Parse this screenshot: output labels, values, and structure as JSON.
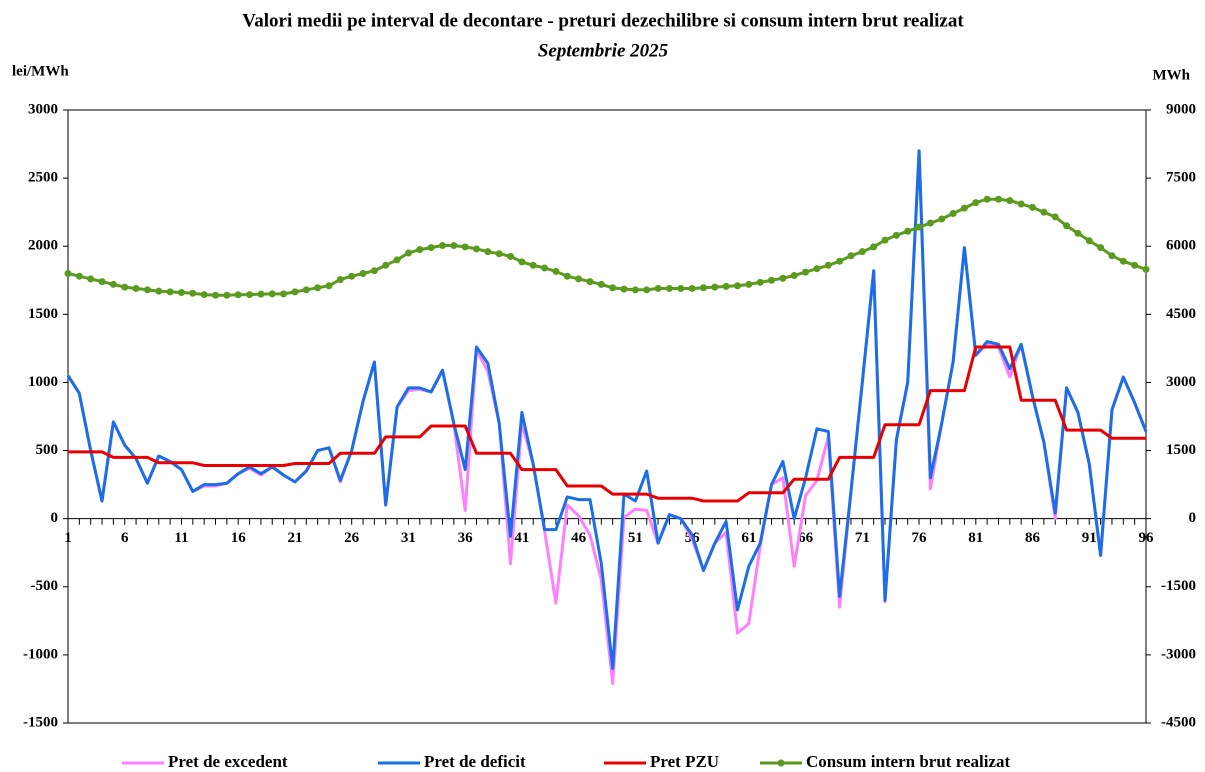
{
  "chart_data": {
    "type": "line",
    "title": "Valori medii pe interval de decontare - preturi dezechilibre si consum intern brut realizat",
    "subtitle": "Septembrie 2025",
    "y_label": "lei/MWh",
    "y2_label": "MWh",
    "x": [
      1,
      2,
      3,
      4,
      5,
      6,
      7,
      8,
      9,
      10,
      11,
      12,
      13,
      14,
      15,
      16,
      17,
      18,
      19,
      20,
      21,
      22,
      23,
      24,
      25,
      26,
      27,
      28,
      29,
      30,
      31,
      32,
      33,
      34,
      35,
      36,
      37,
      38,
      39,
      40,
      41,
      42,
      43,
      44,
      45,
      46,
      47,
      48,
      49,
      50,
      51,
      52,
      53,
      54,
      55,
      56,
      57,
      58,
      59,
      60,
      61,
      62,
      63,
      64,
      65,
      66,
      67,
      68,
      69,
      70,
      71,
      72,
      73,
      74,
      75,
      76,
      77,
      78,
      79,
      80,
      81,
      82,
      83,
      84,
      85,
      86,
      87,
      88,
      89,
      90,
      91,
      92,
      93,
      94,
      95,
      96
    ],
    "xlim": [
      1,
      96
    ],
    "xticks": [
      1,
      6,
      11,
      16,
      21,
      26,
      31,
      36,
      41,
      46,
      51,
      56,
      61,
      66,
      71,
      76,
      81,
      86,
      91,
      96
    ],
    "ylim": [
      -1500,
      3000
    ],
    "yticks": [
      -1500,
      -1000,
      -500,
      0,
      500,
      1000,
      1500,
      2000,
      2500,
      3000
    ],
    "y2lim": [
      -4500,
      9000
    ],
    "y2ticks": [
      -4500,
      -3000,
      -1500,
      0,
      1500,
      3000,
      4500,
      6000,
      7500,
      9000
    ],
    "legend": "bottom",
    "series": [
      {
        "name": "Pret de excedent",
        "color": "#ff80ff",
        "values": [
          1050,
          920,
          500,
          130,
          710,
          540,
          440,
          260,
          460,
          420,
          360,
          200,
          240,
          240,
          260,
          330,
          370,
          320,
          380,
          320,
          270,
          350,
          500,
          520,
          270,
          500,
          860,
          1150,
          100,
          820,
          940,
          950,
          930,
          1090,
          700,
          60,
          1240,
          1080,
          700,
          -330,
          700,
          400,
          -90,
          -620,
          100,
          20,
          -120,
          -450,
          -1210,
          10,
          70,
          60,
          -180,
          30,
          0,
          -150,
          -380,
          -180,
          -100,
          -840,
          -770,
          -200,
          250,
          300,
          -350,
          170,
          280,
          600,
          -650,
          200,
          1000,
          1820,
          -610,
          580,
          1000,
          2700,
          220,
          700,
          1150,
          1990,
          1200,
          1280,
          1260,
          1040,
          1280,
          900,
          560,
          0,
          960,
          780,
          400,
          -270,
          800,
          1040,
          850,
          640
        ]
      },
      {
        "name": "Pret de deficit",
        "color": "#1a6fe8",
        "values": [
          1050,
          920,
          500,
          130,
          710,
          540,
          440,
          260,
          460,
          420,
          360,
          200,
          250,
          250,
          260,
          330,
          380,
          330,
          380,
          320,
          270,
          350,
          500,
          520,
          280,
          500,
          860,
          1150,
          100,
          820,
          960,
          960,
          930,
          1090,
          700,
          360,
          1260,
          1140,
          700,
          -130,
          780,
          400,
          -80,
          -80,
          160,
          140,
          140,
          -330,
          -1100,
          180,
          130,
          350,
          -180,
          30,
          0,
          -120,
          -380,
          -180,
          -20,
          -670,
          -350,
          -180,
          250,
          420,
          0,
          300,
          660,
          640,
          -570,
          200,
          1000,
          1820,
          -600,
          580,
          1000,
          2700,
          300,
          700,
          1150,
          1990,
          1200,
          1300,
          1280,
          1100,
          1280,
          900,
          560,
          40,
          960,
          780,
          400,
          -270,
          800,
          1040,
          850,
          640
        ]
      },
      {
        "name": "Pret PZU",
        "color": "#e80000",
        "values": [
          490,
          490,
          490,
          490,
          450,
          450,
          450,
          450,
          410,
          410,
          410,
          410,
          390,
          390,
          390,
          390,
          390,
          390,
          390,
          390,
          405,
          405,
          405,
          405,
          480,
          480,
          480,
          480,
          600,
          600,
          600,
          600,
          680,
          680,
          680,
          680,
          480,
          480,
          480,
          480,
          360,
          360,
          360,
          360,
          240,
          240,
          240,
          240,
          180,
          180,
          180,
          180,
          150,
          150,
          150,
          150,
          130,
          130,
          130,
          130,
          190,
          190,
          190,
          190,
          290,
          290,
          290,
          290,
          450,
          450,
          450,
          450,
          690,
          690,
          690,
          690,
          940,
          940,
          940,
          940,
          1260,
          1260,
          1260,
          1260,
          870,
          870,
          870,
          870,
          650,
          650,
          650,
          650,
          590,
          590,
          590,
          590
        ]
      },
      {
        "name": "Consum intern brut realizat",
        "color": "#5a9a1e",
        "axis": "y2",
        "marker": "circle",
        "values": [
          5400,
          5340,
          5280,
          5220,
          5160,
          5100,
          5070,
          5040,
          5010,
          4995,
          4980,
          4965,
          4935,
          4920,
          4920,
          4930,
          4935,
          4945,
          4950,
          4950,
          4995,
          5040,
          5085,
          5130,
          5265,
          5340,
          5400,
          5460,
          5580,
          5700,
          5850,
          5925,
          5970,
          6015,
          6015,
          5985,
          5940,
          5880,
          5835,
          5775,
          5655,
          5580,
          5520,
          5445,
          5340,
          5280,
          5220,
          5160,
          5085,
          5055,
          5040,
          5040,
          5070,
          5070,
          5070,
          5070,
          5085,
          5100,
          5115,
          5130,
          5160,
          5205,
          5250,
          5295,
          5355,
          5430,
          5505,
          5580,
          5670,
          5790,
          5880,
          5985,
          6135,
          6240,
          6330,
          6420,
          6510,
          6600,
          6720,
          6840,
          6960,
          7035,
          7035,
          7005,
          6930,
          6855,
          6750,
          6645,
          6450,
          6285,
          6120,
          5970,
          5790,
          5670,
          5580,
          5490
        ]
      }
    ]
  }
}
